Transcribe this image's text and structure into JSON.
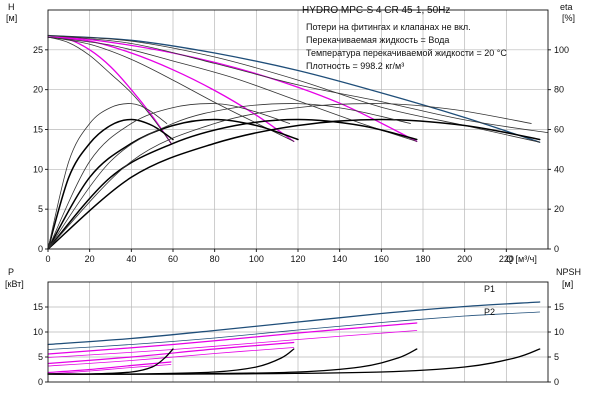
{
  "chart_data": [
    {
      "type": "line",
      "title": "HYDRO MPC-S 4 CR 45-1, 50Hz",
      "notes": [
        "Потери на фитингах и клапанах не вкл.",
        "Перекачиваемая жидкость = Вода",
        "Температура перекачиваемой жидкости = 20 °C",
        "Плотность = 998.2 кг/м³"
      ],
      "xlabel": "Q [м³/ч]",
      "xlim": [
        0,
        240
      ],
      "xticks": [
        0,
        20,
        40,
        60,
        80,
        100,
        120,
        140,
        160,
        180,
        200,
        220
      ],
      "ylabel_left": [
        "H",
        "[м]"
      ],
      "ylim_left": [
        0,
        30
      ],
      "yticks_left": [
        0,
        5,
        10,
        15,
        20,
        25
      ],
      "ylabel_right": [
        "eta",
        "[%]"
      ],
      "ylim_right": [
        0,
        120
      ],
      "yticks_right": [
        0,
        20,
        40,
        60,
        80,
        100
      ],
      "grid": true,
      "series": [
        {
          "kind": "head",
          "color": "#1f4e79",
          "width": 1.3,
          "x": [
            0,
            40,
            80,
            120,
            160,
            200,
            236
          ],
          "y": [
            26.8,
            26.2,
            24.6,
            22.4,
            19.6,
            16.5,
            13.4
          ]
        },
        {
          "kind": "head",
          "color": "#e600e6",
          "width": 1.3,
          "x": [
            0,
            20,
            60,
            100,
            140,
            177
          ],
          "y": [
            26.6,
            26.3,
            24.6,
            22.0,
            18.3,
            13.5
          ]
        },
        {
          "kind": "head",
          "color": "#e600e6",
          "width": 1.3,
          "x": [
            0,
            20,
            40,
            60,
            80,
            100,
            118
          ],
          "y": [
            26.6,
            26.1,
            24.6,
            22.5,
            19.9,
            16.8,
            13.5
          ]
        },
        {
          "kind": "head",
          "color": "#e600e6",
          "width": 1.3,
          "x": [
            0,
            10,
            20,
            30,
            40,
            50,
            59
          ],
          "y": [
            26.6,
            26.3,
            25.0,
            22.9,
            20.0,
            16.7,
            13.3
          ]
        },
        {
          "kind": "head",
          "color": "#333333",
          "width": 0.8,
          "x": [
            0,
            40,
            80,
            120,
            160,
            200,
            236
          ],
          "y": [
            26.8,
            26.1,
            24.1,
            21.2,
            17.8,
            15.5,
            13.4
          ]
        },
        {
          "kind": "head",
          "color": "#333333",
          "width": 0.8,
          "x": [
            0,
            40,
            80,
            120,
            160,
            200,
            240
          ],
          "y": [
            26.8,
            25.8,
            23.3,
            20.6,
            18.5,
            16.2,
            14.6
          ]
        },
        {
          "kind": "head",
          "color": "#333333",
          "width": 0.8,
          "x": [
            0,
            30,
            60,
            90,
            120,
            150,
            177
          ],
          "y": [
            26.6,
            25.6,
            23.6,
            21.4,
            18.6,
            15.8,
            13.5
          ]
        },
        {
          "kind": "head",
          "color": "#333333",
          "width": 0.8,
          "x": [
            0,
            20,
            40,
            60,
            80,
            100,
            118
          ],
          "y": [
            26.6,
            25.7,
            23.8,
            21.2,
            18.4,
            15.8,
            13.5
          ]
        },
        {
          "kind": "head",
          "color": "#333333",
          "width": 0.8,
          "x": [
            0,
            10,
            20,
            30,
            40,
            50,
            59
          ],
          "y": [
            26.6,
            25.9,
            24.3,
            22.0,
            19.6,
            16.5,
            13.3
          ]
        },
        {
          "kind": "eta",
          "color": "#000000",
          "width": 1.5,
          "x": [
            0,
            10,
            20,
            30,
            40,
            50,
            60
          ],
          "y": [
            0,
            36,
            53,
            62,
            65,
            62,
            55
          ]
        },
        {
          "kind": "eta",
          "color": "#000000",
          "width": 1.5,
          "x": [
            0,
            20,
            40,
            60,
            80,
            100,
            120
          ],
          "y": [
            0,
            36,
            53,
            62,
            65,
            62,
            55
          ]
        },
        {
          "kind": "eta",
          "color": "#000000",
          "width": 1.5,
          "x": [
            0,
            30,
            60,
            90,
            120,
            150,
            177
          ],
          "y": [
            0,
            36,
            53,
            62,
            65,
            62,
            55
          ]
        },
        {
          "kind": "eta",
          "color": "#000000",
          "width": 1.5,
          "x": [
            0,
            40,
            80,
            120,
            160,
            200,
            236
          ],
          "y": [
            0,
            36,
            53,
            62,
            65,
            62,
            55
          ]
        },
        {
          "kind": "eta",
          "color": "#333333",
          "width": 0.8,
          "x": [
            0,
            10,
            20,
            30,
            40,
            48,
            57
          ],
          "y": [
            0,
            44,
            63,
            71,
            73,
            70,
            63
          ]
        },
        {
          "kind": "eta",
          "color": "#333333",
          "width": 0.8,
          "x": [
            0,
            20,
            40,
            60,
            80,
            96,
            116
          ],
          "y": [
            0,
            44,
            63,
            71,
            73,
            70,
            63
          ]
        },
        {
          "kind": "eta",
          "color": "#333333",
          "width": 0.8,
          "x": [
            0,
            30,
            60,
            90,
            120,
            145,
            174
          ],
          "y": [
            0,
            44,
            63,
            71,
            73,
            70,
            63
          ]
        },
        {
          "kind": "eta",
          "color": "#333333",
          "width": 0.8,
          "x": [
            0,
            40,
            80,
            120,
            160,
            195,
            232
          ],
          "y": [
            0,
            44,
            63,
            71,
            73,
            70,
            63
          ]
        }
      ]
    },
    {
      "type": "line",
      "xlim": [
        0,
        240
      ],
      "ylabel_left": [
        "P",
        "[кВт]"
      ],
      "ylim_left": [
        0,
        20
      ],
      "yticks_left": [
        0,
        5,
        10,
        15
      ],
      "ylabel_right": [
        "NPSH",
        "[м]"
      ],
      "ylim_right": [
        0,
        20
      ],
      "yticks_right": [
        0,
        5,
        10,
        15
      ],
      "grid": true,
      "series": [
        {
          "name": "P1",
          "kind": "power",
          "color": "#1f4e79",
          "width": 1.3,
          "x": [
            0,
            40,
            80,
            120,
            160,
            200,
            236
          ],
          "y": [
            7.5,
            8.7,
            10.3,
            12.0,
            13.7,
            15.1,
            16.0
          ]
        },
        {
          "name": "P2",
          "kind": "power",
          "color": "#1f4e79",
          "width": 0.8,
          "x": [
            0,
            40,
            80,
            120,
            160,
            200,
            236
          ],
          "y": [
            6.5,
            7.5,
            8.8,
            10.4,
            11.9,
            13.2,
            14.0
          ]
        },
        {
          "kind": "power",
          "color": "#e600e6",
          "width": 1.2,
          "x": [
            0,
            60,
            120,
            177
          ],
          "y": [
            5.6,
            7.5,
            9.8,
            11.8
          ]
        },
        {
          "kind": "power",
          "color": "#e600e6",
          "width": 0.8,
          "x": [
            0,
            60,
            120,
            177
          ],
          "y": [
            4.9,
            6.5,
            8.5,
            10.3
          ]
        },
        {
          "kind": "power",
          "color": "#e600e6",
          "width": 1.2,
          "x": [
            0,
            40,
            80,
            118
          ],
          "y": [
            3.7,
            5.0,
            6.6,
            7.9
          ]
        },
        {
          "kind": "power",
          "color": "#e600e6",
          "width": 0.8,
          "x": [
            0,
            40,
            80,
            118
          ],
          "y": [
            3.2,
            4.3,
            5.7,
            6.9
          ]
        },
        {
          "kind": "power",
          "color": "#e600e6",
          "width": 1.2,
          "x": [
            0,
            20,
            40,
            59
          ],
          "y": [
            1.9,
            2.5,
            3.3,
            4.0
          ]
        },
        {
          "kind": "power",
          "color": "#e600e6",
          "width": 0.8,
          "x": [
            0,
            20,
            40,
            59
          ],
          "y": [
            1.6,
            2.2,
            2.9,
            3.5
          ]
        },
        {
          "kind": "npsh",
          "color": "#000000",
          "width": 1.3,
          "x": [
            0,
            20,
            40,
            50,
            56,
            60
          ],
          "y": [
            1.6,
            1.6,
            2.0,
            3.0,
            4.8,
            6.6
          ]
        },
        {
          "kind": "npsh",
          "color": "#000000",
          "width": 1.3,
          "x": [
            0,
            40,
            80,
            100,
            112,
            118
          ],
          "y": [
            1.6,
            1.6,
            2.0,
            3.0,
            4.8,
            6.6
          ]
        },
        {
          "kind": "npsh",
          "color": "#000000",
          "width": 1.3,
          "x": [
            0,
            60,
            120,
            150,
            168,
            177
          ],
          "y": [
            1.6,
            1.6,
            2.0,
            3.0,
            4.8,
            6.6
          ]
        },
        {
          "kind": "npsh",
          "color": "#000000",
          "width": 1.3,
          "x": [
            0,
            80,
            160,
            200,
            224,
            236
          ],
          "y": [
            1.6,
            1.6,
            2.0,
            3.0,
            4.8,
            6.6
          ]
        }
      ]
    }
  ]
}
